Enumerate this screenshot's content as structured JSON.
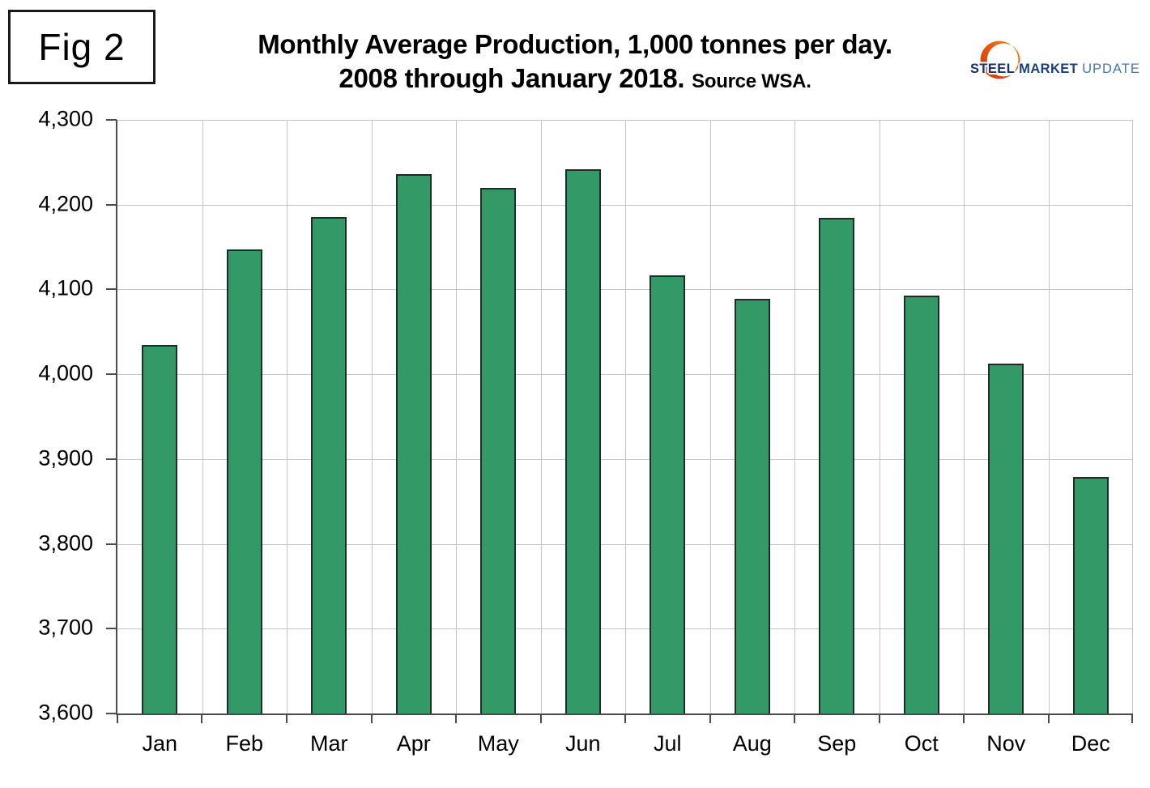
{
  "figure": {
    "label": "Fig 2"
  },
  "title": {
    "line1": "Monthly Average Production, 1,000 tonnes per day.",
    "line2": "2008 through January 2018.",
    "source": "Source WSA."
  },
  "logo": {
    "word1": "STEEL",
    "word2": "MARKET",
    "word3": "UPDATE",
    "crescent_color_dark": "#c23a18",
    "crescent_color_light": "#f7941e",
    "steel_color": "#14336b",
    "market_color": "#1a3f7e",
    "update_color": "#4077b8"
  },
  "chart_data": {
    "type": "bar",
    "title": "Monthly Average Production, 1,000 tonnes per day. 2008 through January 2018. Source WSA.",
    "categories": [
      "Jan",
      "Feb",
      "Mar",
      "Apr",
      "May",
      "Jun",
      "Jul",
      "Aug",
      "Sep",
      "Oct",
      "Nov",
      "Dec"
    ],
    "values": [
      4035,
      4147,
      4185,
      4236,
      4220,
      4242,
      4117,
      4089,
      4184,
      4093,
      4013,
      3879
    ],
    "xlabel": "",
    "ylabel": "",
    "ylim": [
      3600,
      4300
    ],
    "ytick_step": 100,
    "y_ticks": [
      {
        "label": "4,300",
        "value": 4300
      },
      {
        "label": "4,200",
        "value": 4200
      },
      {
        "label": "4,100",
        "value": 4100
      },
      {
        "label": "4,000",
        "value": 4000
      },
      {
        "label": "3,900",
        "value": 3900
      },
      {
        "label": "3,800",
        "value": 3800
      },
      {
        "label": "3,700",
        "value": 3700
      },
      {
        "label": "3,600",
        "value": 3600
      }
    ],
    "grid": true,
    "legend": "none",
    "bar_color": "#339966",
    "bar_border_color": "#1e2e24",
    "gridline_color": "#c3c3c3",
    "axis_color": "#4a4a4a"
  }
}
